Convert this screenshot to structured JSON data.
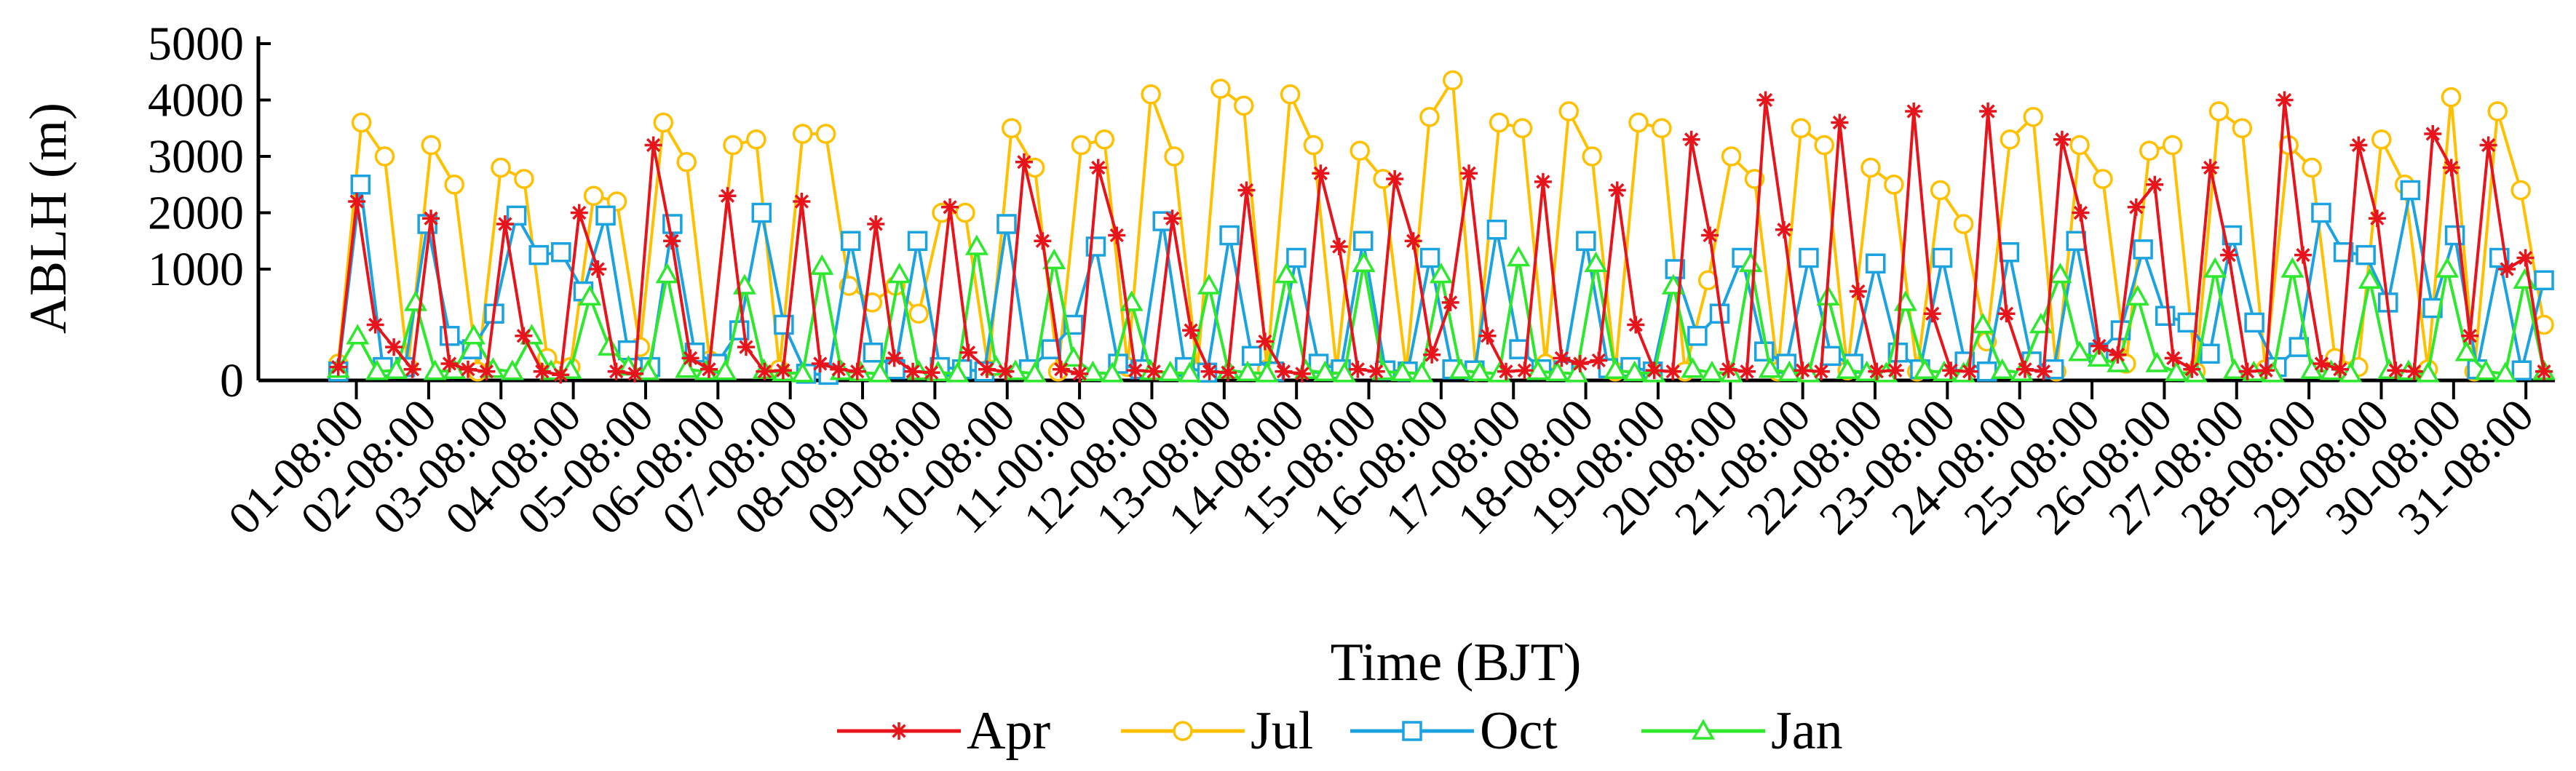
{
  "chart_data": {
    "type": "line",
    "title": "",
    "xlabel": "Time (BJT)",
    "ylabel": "ABLH (m)",
    "ylim": [
      0,
      5000
    ],
    "yticks": [
      0,
      1000,
      2000,
      3000,
      4000,
      5000
    ],
    "ytick_labels": [
      "0",
      "1000",
      "2000",
      "3000",
      "4000",
      "5000"
    ],
    "y_scale": "compressed below 1000 m",
    "x_range_days": [
      0.3,
      31.3
    ],
    "xtick_labels": [
      "01-08:00",
      "02-08:00",
      "03-08:00",
      "04-08:00",
      "05-08:00",
      "06-08:00",
      "07-08:00",
      "08-08:00",
      "09-08:00",
      "10-08:00",
      "11-00:00",
      "12-08:00",
      "13-08:00",
      "14-08:00",
      "15-08:00",
      "16-08:00",
      "17-08:00",
      "18-08:00",
      "19-08:00",
      "20-08:00",
      "21-08:00",
      "22-08:00",
      "23-08:00",
      "24-08:00",
      "25-08:00",
      "26-08:00",
      "27-08:00",
      "28-08:00",
      "29-08:00",
      "30-08:00",
      "31-08:00"
    ],
    "legend_placement": "bottom-center",
    "grid": false,
    "sample_hours_bjt": [
      2,
      8,
      14,
      20
    ],
    "series": [
      {
        "name": "Apr",
        "color": "#e8141c",
        "marker": "star",
        "values": [
          120,
          2200,
          500,
          300,
          100,
          1900,
          150,
          100,
          80,
          1800,
          400,
          80,
          50,
          2000,
          1000,
          80,
          60,
          3200,
          1500,
          200,
          100,
          2300,
          300,
          80,
          90,
          2200,
          150,
          100,
          80,
          1800,
          200,
          80,
          70,
          2100,
          250,
          100,
          80,
          2900,
          1500,
          100,
          60,
          2800,
          1600,
          90,
          80,
          1900,
          450,
          80,
          70,
          2400,
          350,
          80,
          60,
          2700,
          1400,
          100,
          80,
          2600,
          1500,
          230,
          700,
          2700,
          400,
          80,
          90,
          2550,
          200,
          150,
          180,
          2400,
          500,
          90,
          80,
          3300,
          1600,
          100,
          80,
          4000,
          1700,
          90,
          80,
          3600,
          800,
          80,
          90,
          3800,
          600,
          90,
          80,
          3800,
          600,
          100,
          80,
          3300,
          2000,
          310,
          230,
          2100,
          2500,
          200,
          100,
          2800,
          1250,
          80,
          90,
          4000,
          1250,
          150,
          100,
          3200,
          1900,
          90,
          80,
          3400,
          2800,
          400,
          3200,
          1000,
          1200,
          80
        ]
      },
      {
        "name": "Jul",
        "color": "#ffc000",
        "marker": "circle",
        "values": [
          150,
          3600,
          3000,
          120,
          3200,
          2500,
          80,
          2800,
          2600,
          200,
          120,
          2300,
          2200,
          300,
          3600,
          2900,
          180,
          3200,
          3300,
          100,
          3400,
          3400,
          850,
          700,
          850,
          600,
          2000,
          2000,
          100,
          3500,
          2800,
          80,
          3200,
          3300,
          120,
          4100,
          3000,
          80,
          4200,
          3900,
          100,
          4100,
          3200,
          90,
          3100,
          2600,
          80,
          3700,
          4350,
          80,
          3600,
          3500,
          150,
          3800,
          3000,
          80,
          3600,
          3500,
          80,
          900,
          3000,
          2600,
          80,
          3500,
          3200,
          90,
          2800,
          2500,
          80,
          2400,
          1800,
          350,
          3300,
          3700,
          80,
          3200,
          2600,
          150,
          3100,
          3200,
          80,
          3800,
          3500,
          100,
          3200,
          2800,
          200,
          120,
          3300,
          2500,
          100,
          4050,
          80,
          3800,
          2400,
          500
        ]
      },
      {
        "name": "Oct",
        "color": "#1aa3e0",
        "marker": "square",
        "values": [
          80,
          2500,
          120,
          120,
          1800,
          400,
          280,
          600,
          1950,
          1250,
          1300,
          800,
          1950,
          270,
          120,
          1800,
          250,
          150,
          450,
          2000,
          500,
          60,
          50,
          1500,
          250,
          100,
          1500,
          120,
          100,
          80,
          1800,
          100,
          280,
          500,
          1400,
          150,
          100,
          1850,
          120,
          70,
          1600,
          220,
          80,
          1200,
          150,
          100,
          1500,
          90,
          80,
          1200,
          100,
          90,
          1700,
          280,
          100,
          90,
          1500,
          110,
          120,
          80,
          1000,
          400,
          600,
          1200,
          260,
          150,
          1200,
          220,
          150,
          1100,
          250,
          100,
          1200,
          170,
          80,
          1300,
          170,
          100,
          1500,
          250,
          450,
          1350,
          580,
          520,
          240,
          1600,
          520,
          120,
          300,
          2000,
          1300,
          1250,
          700,
          2400,
          650,
          1600,
          100,
          1200,
          90,
          900
        ]
      },
      {
        "name": "Jan",
        "color": "#2de82d",
        "marker": "triangle",
        "values": [
          100,
          400,
          80,
          90,
          700,
          80,
          90,
          400,
          100,
          80,
          400,
          80,
          90,
          750,
          300,
          120,
          80,
          950,
          100,
          80,
          80,
          850,
          90,
          70,
          60,
          1050,
          80,
          70,
          60,
          950,
          80,
          70,
          60,
          1400,
          120,
          80,
          60,
          1150,
          200,
          70,
          60,
          700,
          80,
          70,
          60,
          850,
          90,
          70,
          60,
          950,
          90,
          70,
          60,
          1100,
          80,
          70,
          60,
          950,
          90,
          70,
          60,
          1200,
          80,
          70,
          60,
          1100,
          90,
          70,
          60,
          850,
          100,
          70,
          60,
          1100,
          100,
          70,
          60,
          750,
          90,
          70,
          60,
          700,
          90,
          70,
          60,
          500,
          90,
          70,
          500,
          950,
          250,
          200,
          150,
          750,
          150,
          70,
          60,
          1000,
          90,
          70,
          60,
          1000,
          90,
          80,
          60,
          900,
          90,
          80,
          60,
          1000,
          250,
          80,
          60,
          900,
          80
        ]
      }
    ]
  }
}
